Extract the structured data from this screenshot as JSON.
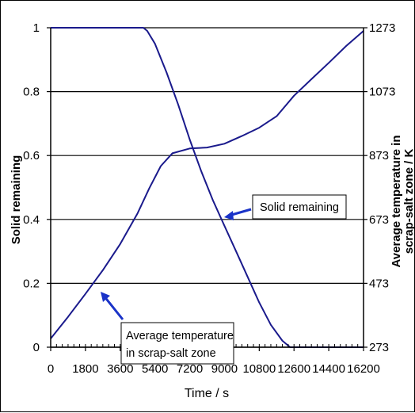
{
  "chart_data": {
    "type": "line",
    "xlabel": "Time / s",
    "ylabel_left": "Solid remaining",
    "ylabel_right_line1": "Average temperature in",
    "ylabel_right_line2": "scrap-salt zone / K",
    "xlim": [
      0,
      16200
    ],
    "ylim_left": [
      0,
      1
    ],
    "ylim_right": [
      273,
      1273
    ],
    "x_ticks": [
      "0",
      "1800",
      "3600",
      "5400",
      "7200",
      "9000",
      "10800",
      "12600",
      "14400",
      "16200"
    ],
    "y_left_ticks": [
      "0",
      "0.2",
      "0.4",
      "0.6",
      "0.8",
      "1"
    ],
    "y_right_ticks": [
      "273",
      "473",
      "673",
      "873",
      "1073",
      "1273"
    ],
    "grid": "horizontal",
    "series": [
      {
        "name": "Solid remaining",
        "axis": "left",
        "color": "#1a1a8c",
        "points": [
          [
            0,
            1
          ],
          [
            4800,
            1
          ],
          [
            5000,
            0.99
          ],
          [
            5400,
            0.95
          ],
          [
            6000,
            0.86
          ],
          [
            6600,
            0.76
          ],
          [
            7200,
            0.65
          ],
          [
            7800,
            0.55
          ],
          [
            8400,
            0.46
          ],
          [
            9000,
            0.38
          ],
          [
            9600,
            0.3
          ],
          [
            10200,
            0.22
          ],
          [
            10800,
            0.14
          ],
          [
            11400,
            0.07
          ],
          [
            12000,
            0.02
          ],
          [
            12400,
            0
          ],
          [
            16200,
            0
          ]
        ]
      },
      {
        "name": "Average temperature in scrap-salt zone",
        "axis": "right",
        "color": "#1a1a8c",
        "points": [
          [
            0,
            300
          ],
          [
            900,
            368
          ],
          [
            1800,
            440
          ],
          [
            2700,
            514
          ],
          [
            3600,
            596
          ],
          [
            4500,
            692
          ],
          [
            5100,
            770
          ],
          [
            5700,
            840
          ],
          [
            6300,
            880
          ],
          [
            7200,
            895
          ],
          [
            8100,
            898
          ],
          [
            9000,
            910
          ],
          [
            9900,
            934
          ],
          [
            10800,
            960
          ],
          [
            11700,
            996
          ],
          [
            12600,
            1060
          ],
          [
            13500,
            1112
          ],
          [
            14400,
            1163
          ],
          [
            15300,
            1216
          ],
          [
            16200,
            1263
          ]
        ]
      }
    ],
    "annotations": [
      {
        "name": "solid-callout",
        "text": [
          "Solid remaining"
        ]
      },
      {
        "name": "temp-callout",
        "text": [
          "Average temperature",
          "in scrap-salt zone"
        ]
      }
    ]
  }
}
